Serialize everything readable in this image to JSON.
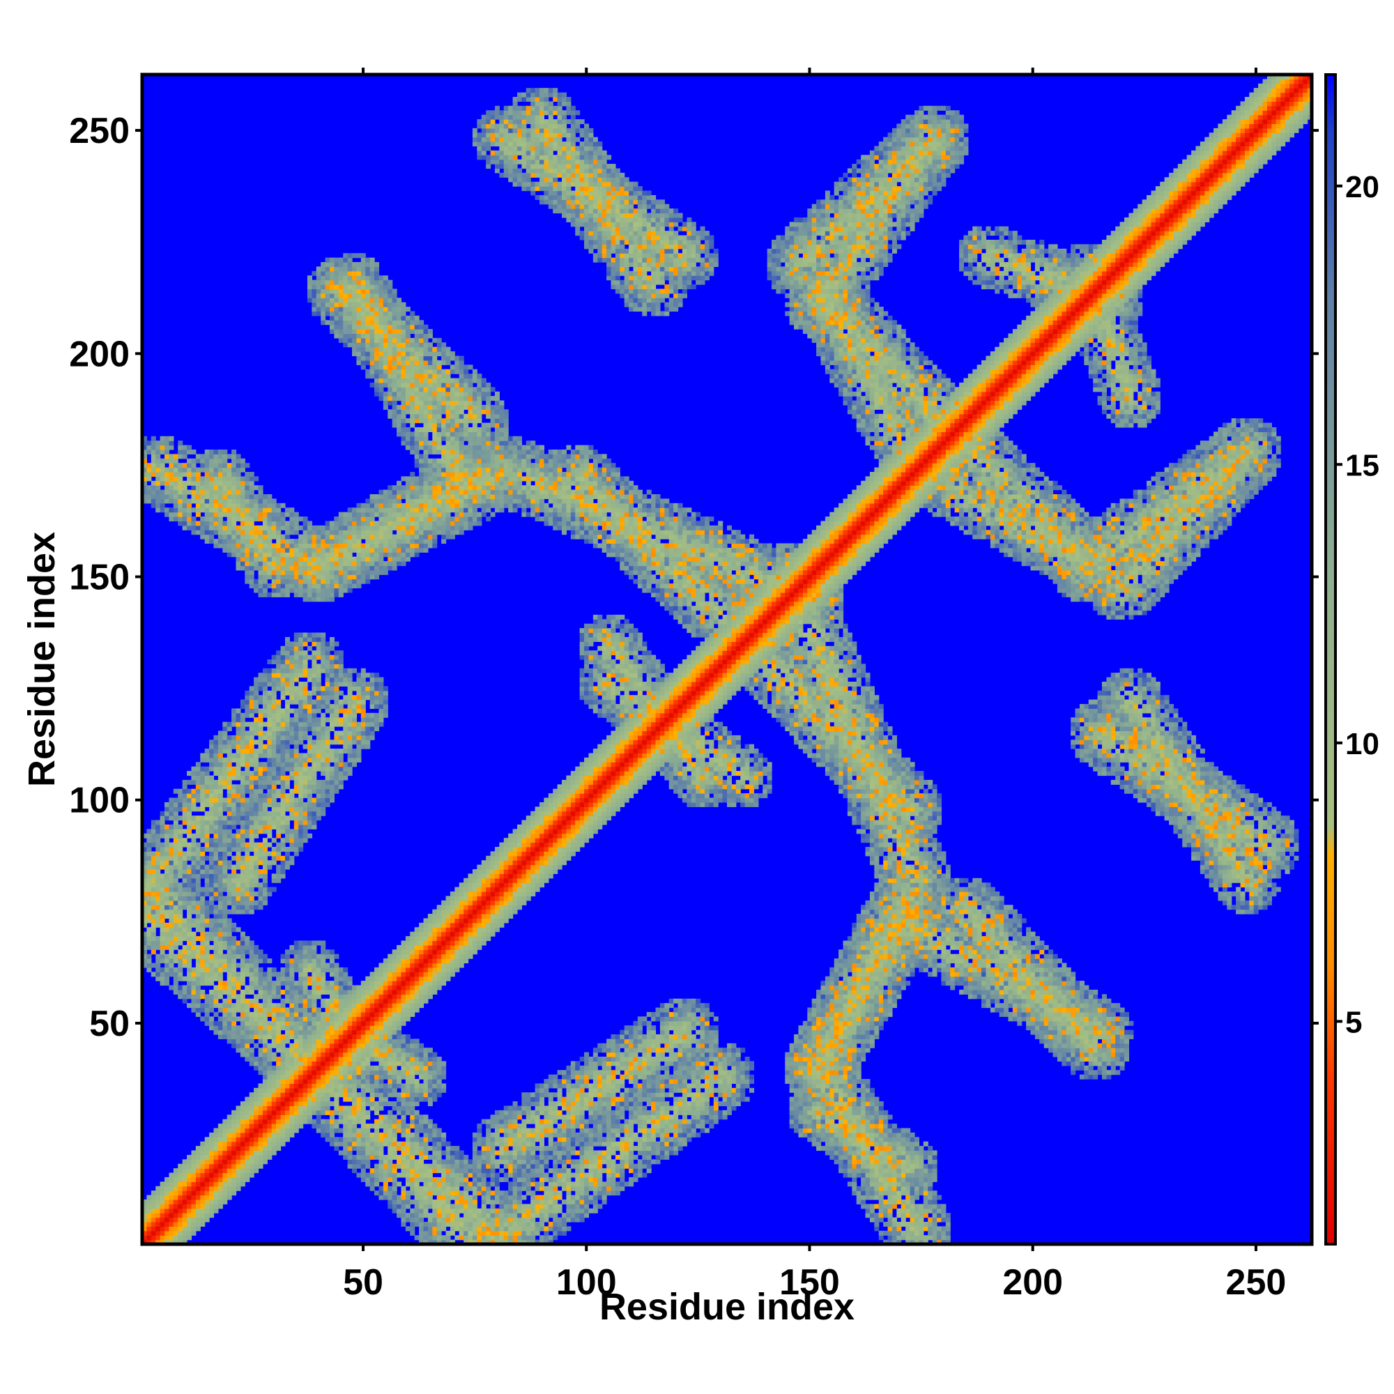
{
  "chart_data": {
    "type": "heatmap",
    "title": "",
    "xlabel": "Residue index",
    "ylabel": "Residue index",
    "n_residues": 262,
    "xlim": [
      1,
      262
    ],
    "ylim": [
      1,
      262
    ],
    "x_ticks": [
      50,
      100,
      150,
      200,
      250
    ],
    "y_ticks": [
      50,
      100,
      150,
      200,
      250
    ],
    "colorbar": {
      "range": [
        1,
        22
      ],
      "ticks": [
        5,
        10,
        15,
        20
      ],
      "stops": [
        {
          "value": 1,
          "color": "#e00000"
        },
        {
          "value": 4,
          "color": "#ff3a00"
        },
        {
          "value": 6,
          "color": "#ff8c00"
        },
        {
          "value": 8,
          "color": "#ffb000"
        },
        {
          "value": 8.5,
          "color": "#a8c080"
        },
        {
          "value": 13,
          "color": "#8fb090"
        },
        {
          "value": 18,
          "color": "#5f80a8"
        },
        {
          "value": 21,
          "color": "#2040c8"
        },
        {
          "value": 22,
          "color": "#0000ff"
        }
      ]
    },
    "background_color": "#0000ff",
    "diagonal_band": {
      "core_value": 1.5,
      "half_width_residues": 9
    },
    "contact_bands": [
      {
        "from": [
          2,
          74
        ],
        "to": [
          80,
          2
        ],
        "width": 14
      },
      {
        "from": [
          2,
          80
        ],
        "to": [
          38,
          130
        ],
        "width": 12
      },
      {
        "from": [
          4,
          174
        ],
        "to": [
          40,
          152
        ],
        "width": 12
      },
      {
        "from": [
          40,
          152
        ],
        "to": [
          78,
          172
        ],
        "width": 12
      },
      {
        "from": [
          45,
          214
        ],
        "to": [
          75,
          185
        ],
        "width": 12
      },
      {
        "from": [
          82,
          248
        ],
        "to": [
          122,
          222
        ],
        "width": 11
      },
      {
        "from": [
          82,
          174
        ],
        "to": [
          150,
          145
        ],
        "width": 12
      },
      {
        "from": [
          82,
          22
        ],
        "to": [
          122,
          48
        ],
        "width": 12
      },
      {
        "from": [
          42,
          50
        ],
        "to": [
          62,
          38
        ],
        "width": 10
      },
      {
        "from": [
          142,
          130
        ],
        "to": [
          172,
          98
        ],
        "width": 12
      },
      {
        "from": [
          105,
          126
        ],
        "to": [
          135,
          105
        ],
        "width": 10
      },
      {
        "from": [
          152,
          40
        ],
        "to": [
          172,
          75
        ],
        "width": 12
      },
      {
        "from": [
          152,
          30
        ],
        "to": [
          172,
          18
        ],
        "width": 10
      },
      {
        "from": [
          172,
          72
        ],
        "to": [
          215,
          48
        ],
        "width": 11
      },
      {
        "from": [
          148,
          220
        ],
        "to": [
          178,
          248
        ],
        "width": 12
      },
      {
        "from": [
          155,
          210
        ],
        "to": [
          188,
          176
        ],
        "width": 12
      },
      {
        "from": [
          182,
          170
        ],
        "to": [
          215,
          152
        ],
        "width": 11
      },
      {
        "from": [
          212,
          152
        ],
        "to": [
          246,
          176
        ],
        "width": 12
      },
      {
        "from": [
          190,
          222
        ],
        "to": [
          218,
          212
        ],
        "width": 10
      },
      {
        "from": [
          216,
          115
        ],
        "to": [
          252,
          90
        ],
        "width": 12
      }
    ]
  }
}
